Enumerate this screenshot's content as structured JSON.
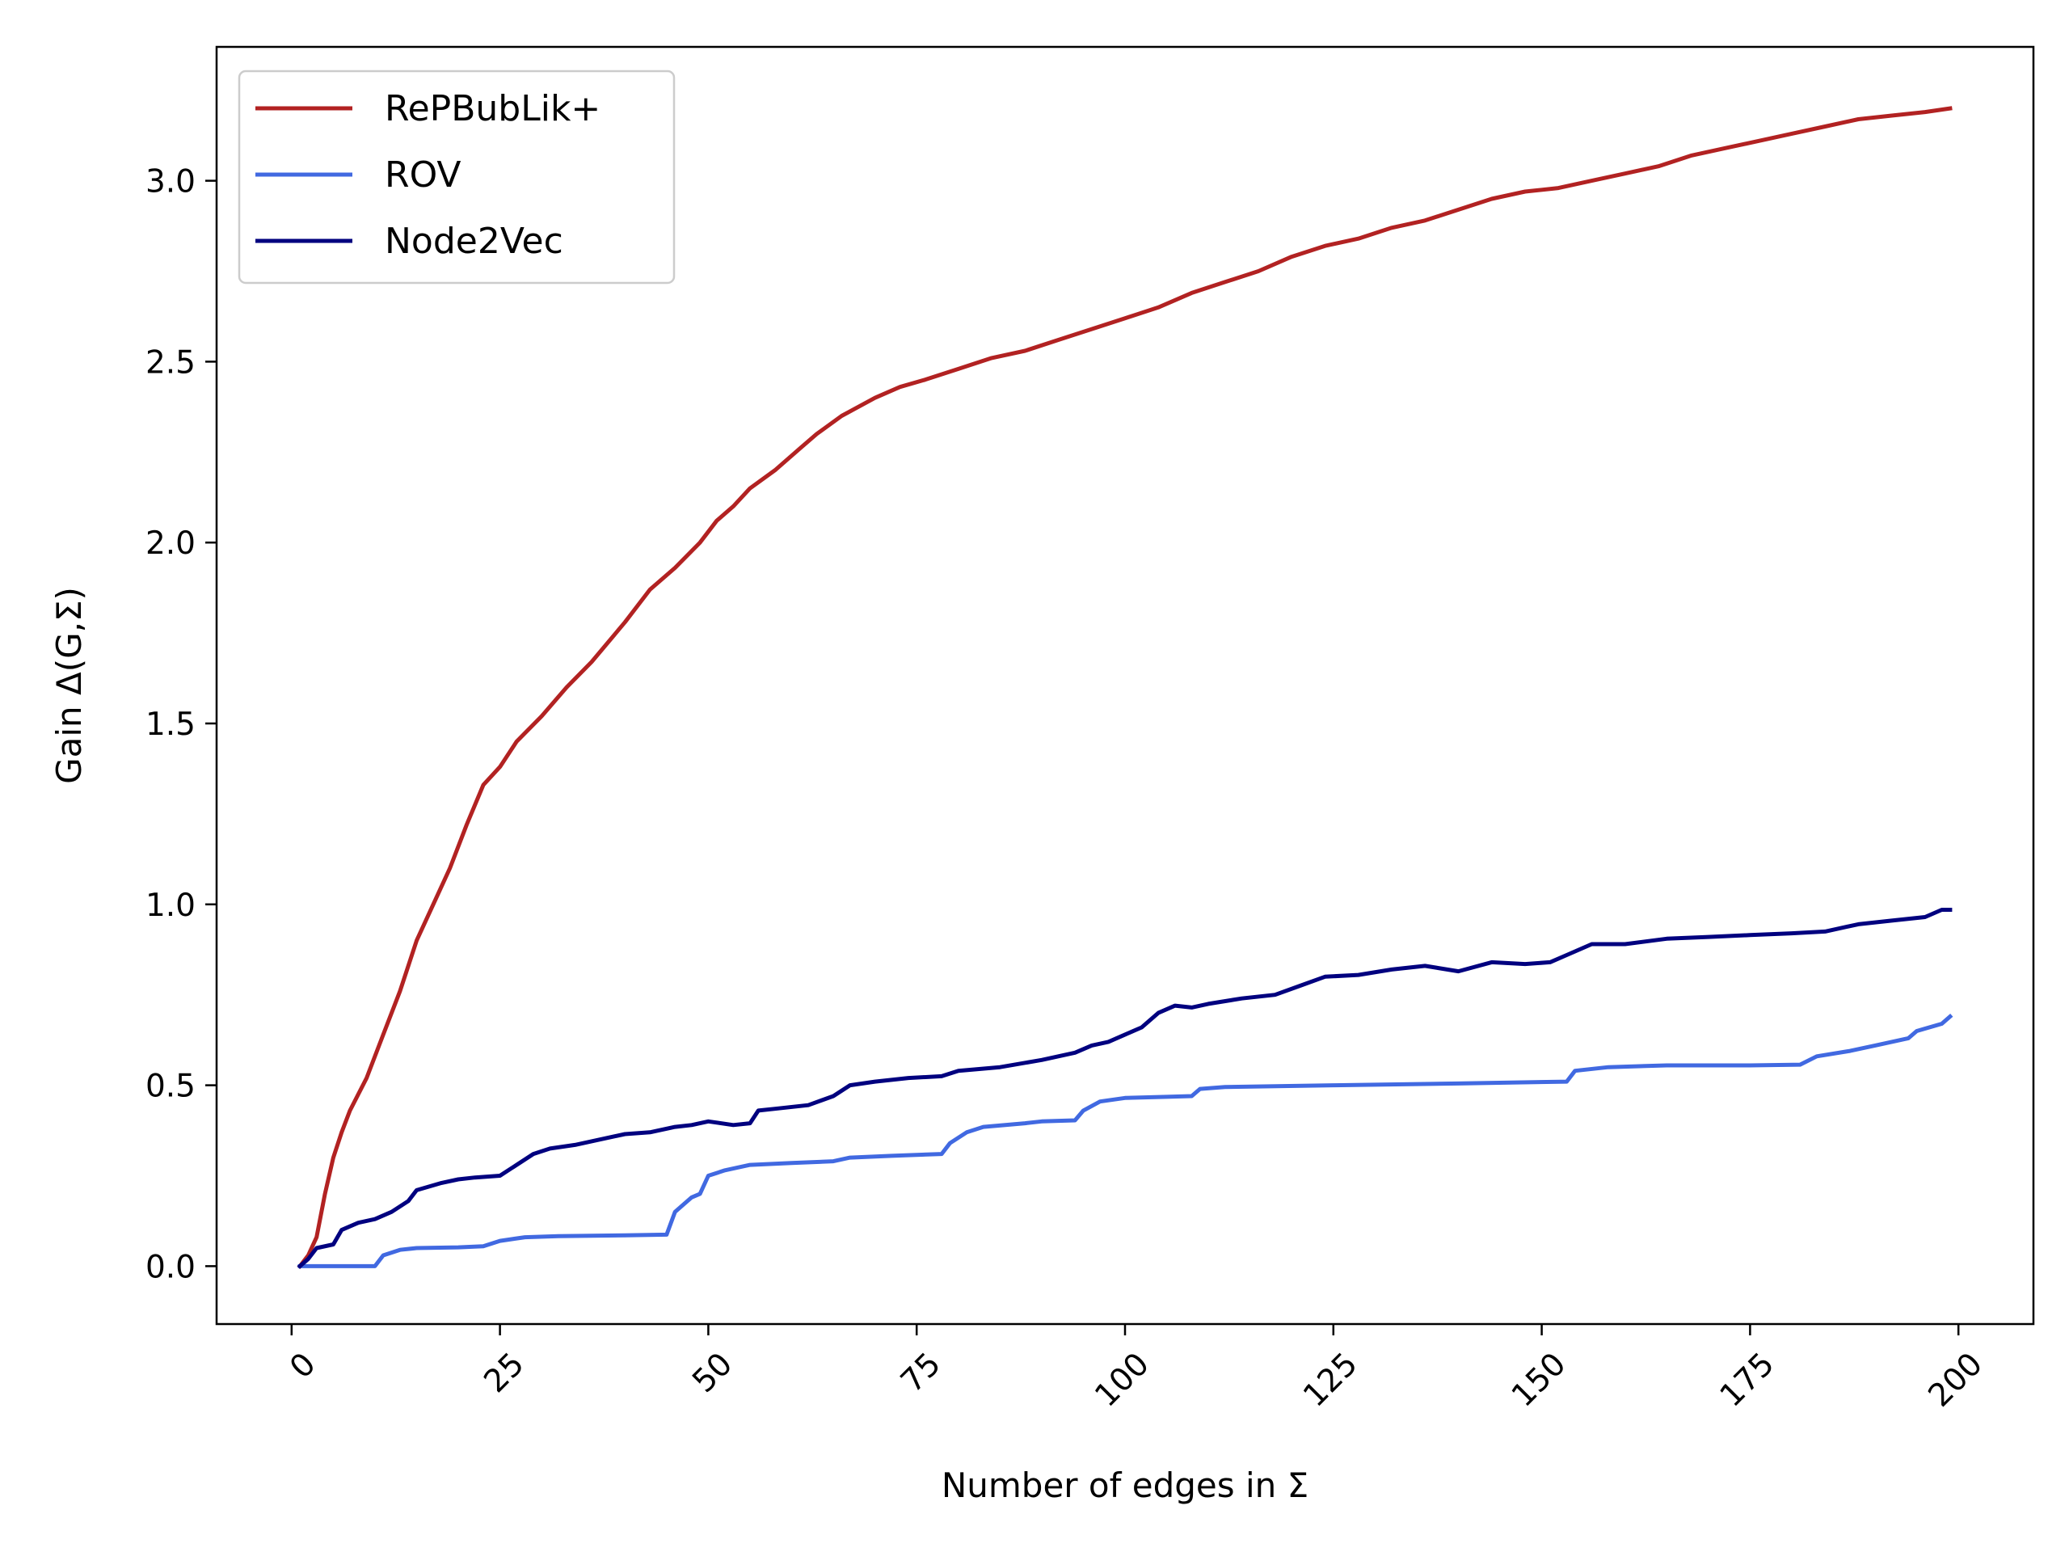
{
  "chart_data": {
    "type": "line",
    "title": "",
    "xlabel": "Number of edges in Σ",
    "ylabel": "Gain Δ(G,Σ)",
    "xlim": [
      -9,
      209
    ],
    "ylim": [
      -0.16,
      3.37
    ],
    "xticks": [
      0,
      25,
      50,
      75,
      100,
      125,
      150,
      175,
      200
    ],
    "xtick_labels": [
      "0",
      "25",
      "50",
      "75",
      "100",
      "125",
      "150",
      "175",
      "200"
    ],
    "yticks": [
      0.0,
      0.5,
      1.0,
      1.5,
      2.0,
      2.5,
      3.0
    ],
    "ytick_labels": [
      "0.0",
      "0.5",
      "1.0",
      "1.5",
      "2.0",
      "2.5",
      "3.0"
    ],
    "grid": false,
    "legend": "upper-left",
    "series": [
      {
        "name": "RePBubLik+",
        "color": "#b22222",
        "points": [
          [
            1,
            0
          ],
          [
            2,
            0.03
          ],
          [
            3,
            0.08
          ],
          [
            4,
            0.2
          ],
          [
            5,
            0.3
          ],
          [
            6,
            0.37
          ],
          [
            7,
            0.43
          ],
          [
            9,
            0.52
          ],
          [
            11,
            0.64
          ],
          [
            13,
            0.76
          ],
          [
            15,
            0.9
          ],
          [
            17,
            1.0
          ],
          [
            19,
            1.1
          ],
          [
            21,
            1.22
          ],
          [
            23,
            1.33
          ],
          [
            25,
            1.38
          ],
          [
            27,
            1.45
          ],
          [
            30,
            1.52
          ],
          [
            33,
            1.6
          ],
          [
            36,
            1.67
          ],
          [
            40,
            1.78
          ],
          [
            43,
            1.87
          ],
          [
            46,
            1.93
          ],
          [
            49,
            2.0
          ],
          [
            51,
            2.06
          ],
          [
            53,
            2.1
          ],
          [
            55,
            2.15
          ],
          [
            58,
            2.2
          ],
          [
            61,
            2.26
          ],
          [
            63,
            2.3
          ],
          [
            66,
            2.35
          ],
          [
            70,
            2.4
          ],
          [
            73,
            2.43
          ],
          [
            76,
            2.45
          ],
          [
            80,
            2.48
          ],
          [
            84,
            2.51
          ],
          [
            88,
            2.53
          ],
          [
            92,
            2.56
          ],
          [
            96,
            2.59
          ],
          [
            100,
            2.62
          ],
          [
            104,
            2.65
          ],
          [
            108,
            2.69
          ],
          [
            112,
            2.72
          ],
          [
            116,
            2.75
          ],
          [
            120,
            2.79
          ],
          [
            124,
            2.82
          ],
          [
            128,
            2.84
          ],
          [
            132,
            2.87
          ],
          [
            136,
            2.89
          ],
          [
            140,
            2.92
          ],
          [
            144,
            2.95
          ],
          [
            148,
            2.97
          ],
          [
            152,
            2.98
          ],
          [
            156,
            3.0
          ],
          [
            160,
            3.02
          ],
          [
            164,
            3.04
          ],
          [
            168,
            3.07
          ],
          [
            172,
            3.09
          ],
          [
            176,
            3.11
          ],
          [
            180,
            3.13
          ],
          [
            184,
            3.15
          ],
          [
            188,
            3.17
          ],
          [
            192,
            3.18
          ],
          [
            196,
            3.19
          ],
          [
            199,
            3.2
          ]
        ]
      },
      {
        "name": "ROV",
        "color": "#4169e1",
        "points": [
          [
            1,
            0
          ],
          [
            3,
            0
          ],
          [
            6,
            0
          ],
          [
            10,
            0
          ],
          [
            11,
            0.03
          ],
          [
            13,
            0.045
          ],
          [
            15,
            0.05
          ],
          [
            20,
            0.052
          ],
          [
            23,
            0.055
          ],
          [
            25,
            0.07
          ],
          [
            28,
            0.08
          ],
          [
            32,
            0.083
          ],
          [
            40,
            0.085
          ],
          [
            45,
            0.087
          ],
          [
            46,
            0.15
          ],
          [
            48,
            0.19
          ],
          [
            49,
            0.2
          ],
          [
            50,
            0.25
          ],
          [
            52,
            0.265
          ],
          [
            55,
            0.28
          ],
          [
            60,
            0.285
          ],
          [
            65,
            0.29
          ],
          [
            67,
            0.3
          ],
          [
            72,
            0.305
          ],
          [
            78,
            0.31
          ],
          [
            79,
            0.34
          ],
          [
            81,
            0.37
          ],
          [
            83,
            0.385
          ],
          [
            88,
            0.395
          ],
          [
            90,
            0.4
          ],
          [
            94,
            0.403
          ],
          [
            95,
            0.43
          ],
          [
            97,
            0.455
          ],
          [
            100,
            0.465
          ],
          [
            105,
            0.468
          ],
          [
            108,
            0.47
          ],
          [
            109,
            0.49
          ],
          [
            112,
            0.495
          ],
          [
            125,
            0.5
          ],
          [
            140,
            0.505
          ],
          [
            153,
            0.51
          ],
          [
            154,
            0.54
          ],
          [
            158,
            0.55
          ],
          [
            165,
            0.555
          ],
          [
            175,
            0.555
          ],
          [
            181,
            0.557
          ],
          [
            183,
            0.58
          ],
          [
            187,
            0.595
          ],
          [
            190,
            0.61
          ],
          [
            194,
            0.63
          ],
          [
            195,
            0.65
          ],
          [
            198,
            0.67
          ],
          [
            199,
            0.69
          ]
        ]
      },
      {
        "name": "Node2Vec",
        "color": "#00007f",
        "points": [
          [
            1,
            0
          ],
          [
            2,
            0.02
          ],
          [
            3,
            0.05
          ],
          [
            5,
            0.06
          ],
          [
            6,
            0.1
          ],
          [
            8,
            0.12
          ],
          [
            10,
            0.13
          ],
          [
            12,
            0.15
          ],
          [
            14,
            0.18
          ],
          [
            15,
            0.21
          ],
          [
            18,
            0.23
          ],
          [
            20,
            0.24
          ],
          [
            22,
            0.245
          ],
          [
            25,
            0.25
          ],
          [
            27,
            0.28
          ],
          [
            29,
            0.31
          ],
          [
            31,
            0.325
          ],
          [
            34,
            0.335
          ],
          [
            37,
            0.35
          ],
          [
            40,
            0.365
          ],
          [
            43,
            0.37
          ],
          [
            46,
            0.385
          ],
          [
            48,
            0.39
          ],
          [
            50,
            0.4
          ],
          [
            53,
            0.39
          ],
          [
            55,
            0.395
          ],
          [
            56,
            0.43
          ],
          [
            58,
            0.435
          ],
          [
            62,
            0.445
          ],
          [
            65,
            0.47
          ],
          [
            67,
            0.5
          ],
          [
            70,
            0.51
          ],
          [
            74,
            0.52
          ],
          [
            78,
            0.525
          ],
          [
            80,
            0.54
          ],
          [
            85,
            0.55
          ],
          [
            90,
            0.57
          ],
          [
            94,
            0.59
          ],
          [
            96,
            0.61
          ],
          [
            98,
            0.62
          ],
          [
            100,
            0.64
          ],
          [
            102,
            0.66
          ],
          [
            104,
            0.7
          ],
          [
            106,
            0.72
          ],
          [
            108,
            0.715
          ],
          [
            110,
            0.725
          ],
          [
            114,
            0.74
          ],
          [
            118,
            0.75
          ],
          [
            121,
            0.775
          ],
          [
            124,
            0.8
          ],
          [
            128,
            0.805
          ],
          [
            132,
            0.82
          ],
          [
            136,
            0.83
          ],
          [
            140,
            0.815
          ],
          [
            144,
            0.84
          ],
          [
            148,
            0.835
          ],
          [
            151,
            0.84
          ],
          [
            153,
            0.86
          ],
          [
            156,
            0.89
          ],
          [
            160,
            0.89
          ],
          [
            165,
            0.905
          ],
          [
            170,
            0.91
          ],
          [
            175,
            0.915
          ],
          [
            180,
            0.92
          ],
          [
            184,
            0.925
          ],
          [
            188,
            0.945
          ],
          [
            192,
            0.955
          ],
          [
            196,
            0.965
          ],
          [
            198,
            0.985
          ],
          [
            199,
            0.985
          ]
        ]
      }
    ]
  }
}
